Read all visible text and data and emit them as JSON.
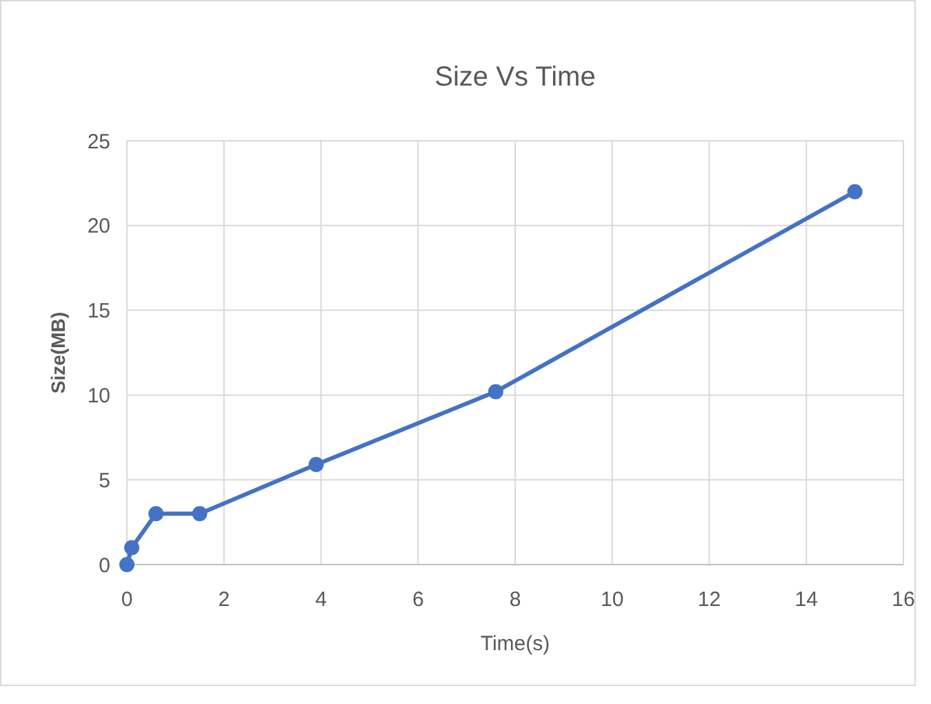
{
  "chart_data": {
    "type": "line",
    "title": "Size Vs Time",
    "xlabel": "Time(s)",
    "ylabel": "Size(MB)",
    "x": [
      0,
      0.1,
      0.6,
      1.5,
      3.9,
      7.6,
      15
    ],
    "series": [
      {
        "color": "#4472c4",
        "values": [
          0,
          1,
          3,
          3,
          5.9,
          10.2,
          22
        ]
      }
    ],
    "xlim": [
      0,
      16
    ],
    "xticks": [
      0,
      2,
      4,
      6,
      8,
      10,
      12,
      14,
      16
    ],
    "ylim": [
      0,
      25
    ],
    "yticks": [
      0,
      5,
      10,
      15,
      20,
      25
    ],
    "grid": true,
    "marker": "circle",
    "line_style": "solid"
  }
}
